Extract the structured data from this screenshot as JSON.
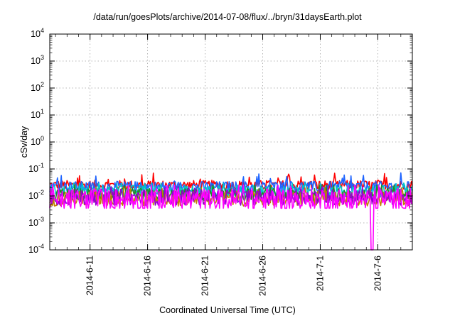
{
  "chart_data": {
    "type": "line",
    "title": "/data/run/goesPlots/archive/2014-07-08/flux/../bryn/31daysEarth.plot",
    "xlabel": "Coordinated Universal Time (UTC)",
    "ylabel": "cSv/day",
    "yscale": "log",
    "ylim": [
      0.0001,
      10000
    ],
    "xlim": [
      "2014-06-07T12:00",
      "2014-07-09T00:00"
    ],
    "y_ticks": [
      {
        "value": 0.0001,
        "base": "10",
        "exp": "-4"
      },
      {
        "value": 0.001,
        "base": "10",
        "exp": "-3"
      },
      {
        "value": 0.01,
        "base": "10",
        "exp": "-2"
      },
      {
        "value": 0.1,
        "base": "10",
        "exp": "-1"
      },
      {
        "value": 1,
        "base": "10",
        "exp": "0"
      },
      {
        "value": 10,
        "base": "10",
        "exp": "1"
      },
      {
        "value": 100,
        "base": "10",
        "exp": "2"
      },
      {
        "value": 1000,
        "base": "10",
        "exp": "3"
      },
      {
        "value": 10000,
        "base": "10",
        "exp": "4"
      }
    ],
    "x_ticks": [
      {
        "date": "2014-06-11",
        "label": "2014-6-11"
      },
      {
        "date": "2014-06-16",
        "label": "2014-6-16"
      },
      {
        "date": "2014-06-21",
        "label": "2014-6-21"
      },
      {
        "date": "2014-06-26",
        "label": "2014-6-26"
      },
      {
        "date": "2014-07-01",
        "label": "2014-7-1"
      },
      {
        "date": "2014-07-06",
        "label": "2014-7-6"
      }
    ],
    "grid": true,
    "series": [
      {
        "color": "#ff0000",
        "typical": 0.025,
        "spread": 0.18,
        "min": 0.018,
        "max": 0.07
      },
      {
        "color": "#1e64ff",
        "typical": 0.022,
        "spread": 0.2,
        "min": 0.013,
        "max": 0.09
      },
      {
        "color": "#00c8c8",
        "typical": 0.015,
        "spread": 0.22,
        "min": 0.008,
        "max": 0.03
      },
      {
        "color": "#228b22",
        "typical": 0.011,
        "spread": 0.24,
        "min": 0.005,
        "max": 0.025
      },
      {
        "color": "#c08000",
        "typical": 0.008,
        "spread": 0.28,
        "min": 0.004,
        "max": 0.02
      },
      {
        "color": "#9400d3",
        "typical": 0.009,
        "spread": 0.3,
        "min": 0.004,
        "max": 0.022
      },
      {
        "color": "#ff00ff",
        "typical": 0.007,
        "spread": 0.45,
        "min": 0.0035,
        "max": 0.025
      }
    ],
    "dropout": {
      "series_color": "#ff00ff",
      "date": "2014-07-05T12:00",
      "min": 0.0001
    }
  }
}
